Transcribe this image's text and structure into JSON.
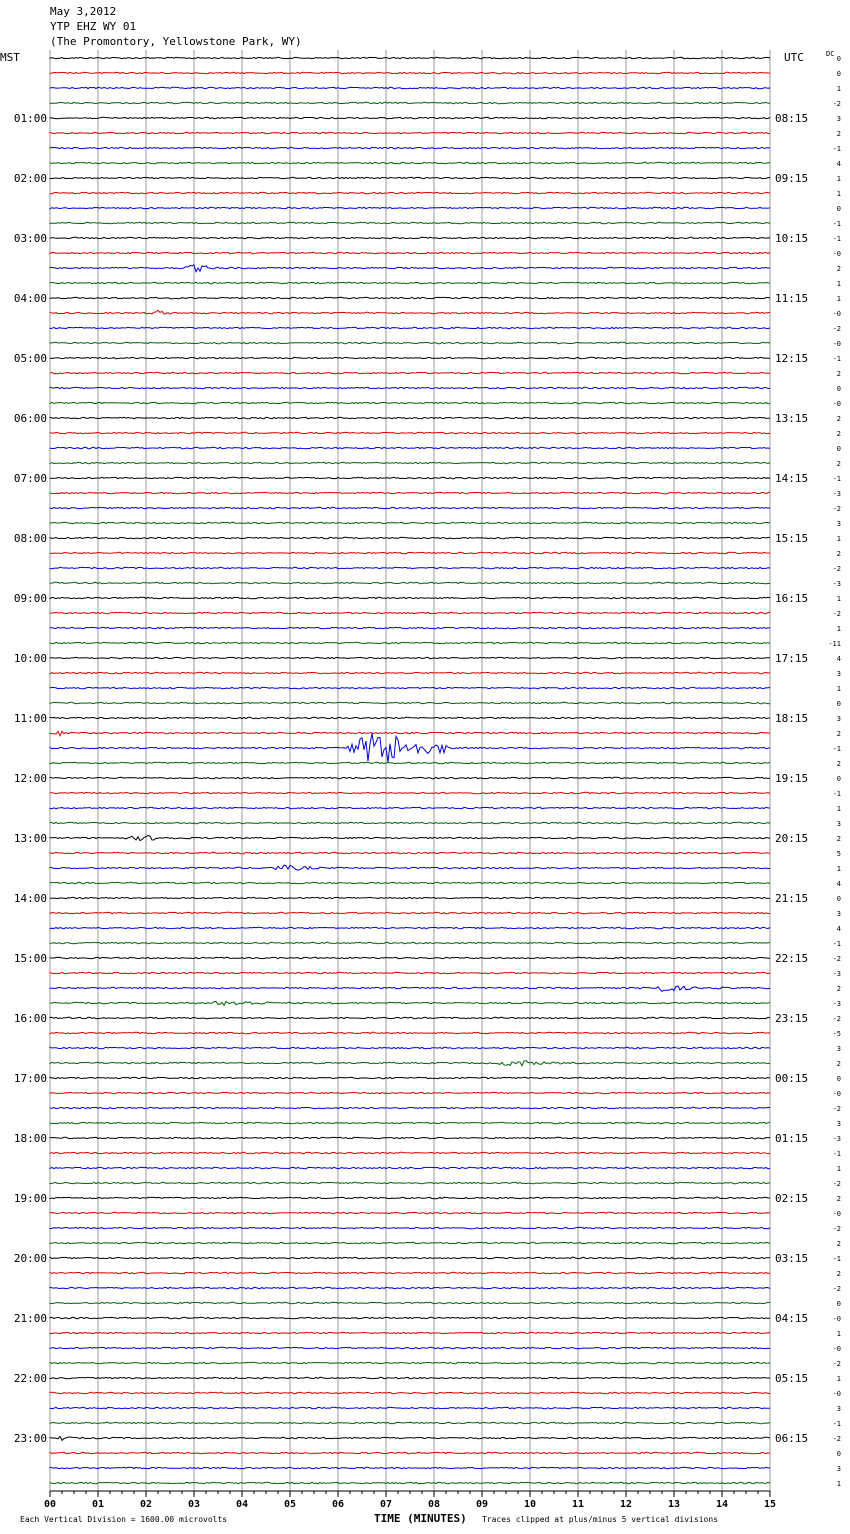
{
  "header": {
    "date": "May 3,2012",
    "station": "YTP EHZ WY 01",
    "location": "(The Promontory, Yellowstone Park, WY)"
  },
  "left_label": "MST",
  "right_label": "UTC",
  "dc_label": "DC",
  "footer": {
    "scale_note": "Each Vertical Division = 1600.00 microvolts",
    "x_title": "TIME (MINUTES)",
    "clip_note": "Traces clipped at plus/minus 5 vertical divisions"
  },
  "colors": {
    "trace_cycle": [
      "#000000",
      "#dd0000",
      "#0000dd",
      "#006600"
    ],
    "grid": "#9a9a9a"
  },
  "chart_data": {
    "type": "line",
    "xlabel": "TIME (MINUTES)",
    "xlim": [
      0,
      15
    ],
    "x_ticks": [
      "00",
      "01",
      "02",
      "03",
      "04",
      "05",
      "06",
      "07",
      "08",
      "09",
      "10",
      "11",
      "12",
      "13",
      "14",
      "15"
    ],
    "left_hour_labels": [
      "01:00",
      "02:00",
      "03:00",
      "04:00",
      "05:00",
      "06:00",
      "07:00",
      "08:00",
      "09:00",
      "10:00",
      "11:00",
      "12:00",
      "13:00",
      "14:00",
      "15:00",
      "16:00",
      "17:00",
      "18:00",
      "19:00",
      "20:00",
      "21:00",
      "22:00",
      "23:00"
    ],
    "right_hour_labels": [
      "08:15",
      "09:15",
      "10:15",
      "11:15",
      "12:15",
      "13:15",
      "14:15",
      "15:15",
      "16:15",
      "17:15",
      "18:15",
      "19:15",
      "20:15",
      "21:15",
      "22:15",
      "23:15",
      "00:15",
      "01:15",
      "02:15",
      "03:15",
      "04:15",
      "05:15",
      "06:15"
    ],
    "traces_count": 96,
    "dc_offsets": [
      "0",
      "0",
      "1",
      "-2",
      "3",
      "2",
      "-1",
      "4",
      "1",
      "1",
      "0",
      "-1",
      "-1",
      "-0",
      "2",
      "1",
      "1",
      "-0",
      "-2",
      "-0",
      "-1",
      "2",
      "0",
      "-0",
      "2",
      "2",
      "0",
      "2",
      "-1",
      "-3",
      "-2",
      "3",
      "1",
      "2",
      "-2",
      "-3",
      "1",
      "-2",
      "1",
      "-11",
      "4",
      "3",
      "1",
      "0",
      "3",
      "2",
      "-1",
      "2",
      "0",
      "-1",
      "1",
      "3",
      "2",
      "5",
      "1",
      "4",
      "0",
      "3",
      "4",
      "-1",
      "-2",
      "-3",
      "2",
      "-3",
      "-2",
      "-5",
      "3",
      "2",
      "0",
      "-0",
      "-2",
      "3",
      "-3",
      "-1",
      "1",
      "-2",
      "2",
      "-0",
      "-2",
      "2",
      "-1",
      "2",
      "-2",
      "0",
      "-0",
      "1",
      "-0",
      "-2",
      "1",
      "-0",
      "3",
      "-1",
      "-2",
      "0",
      "3",
      "1"
    ],
    "events": [
      {
        "trace": 14,
        "start_min": 2.7,
        "end_min": 3.8,
        "amp": 4
      },
      {
        "trace": 17,
        "start_min": 2.0,
        "end_min": 2.8,
        "amp": 3
      },
      {
        "trace": 45,
        "start_min": 0.0,
        "end_min": 0.7,
        "amp": 3
      },
      {
        "trace": 46,
        "start_min": 6.2,
        "end_min": 8.3,
        "amp": 22
      },
      {
        "trace": 52,
        "start_min": 1.4,
        "end_min": 3.2,
        "amp": 3
      },
      {
        "trace": 54,
        "start_min": 4.3,
        "end_min": 6.3,
        "amp": 3
      },
      {
        "trace": 62,
        "start_min": 12.2,
        "end_min": 14.0,
        "amp": 4
      },
      {
        "trace": 63,
        "start_min": 3.0,
        "end_min": 5.5,
        "amp": 3
      },
      {
        "trace": 67,
        "start_min": 9.2,
        "end_min": 10.8,
        "amp": 4
      },
      {
        "trace": 92,
        "start_min": 0.1,
        "end_min": 0.5,
        "amp": 4
      }
    ]
  }
}
